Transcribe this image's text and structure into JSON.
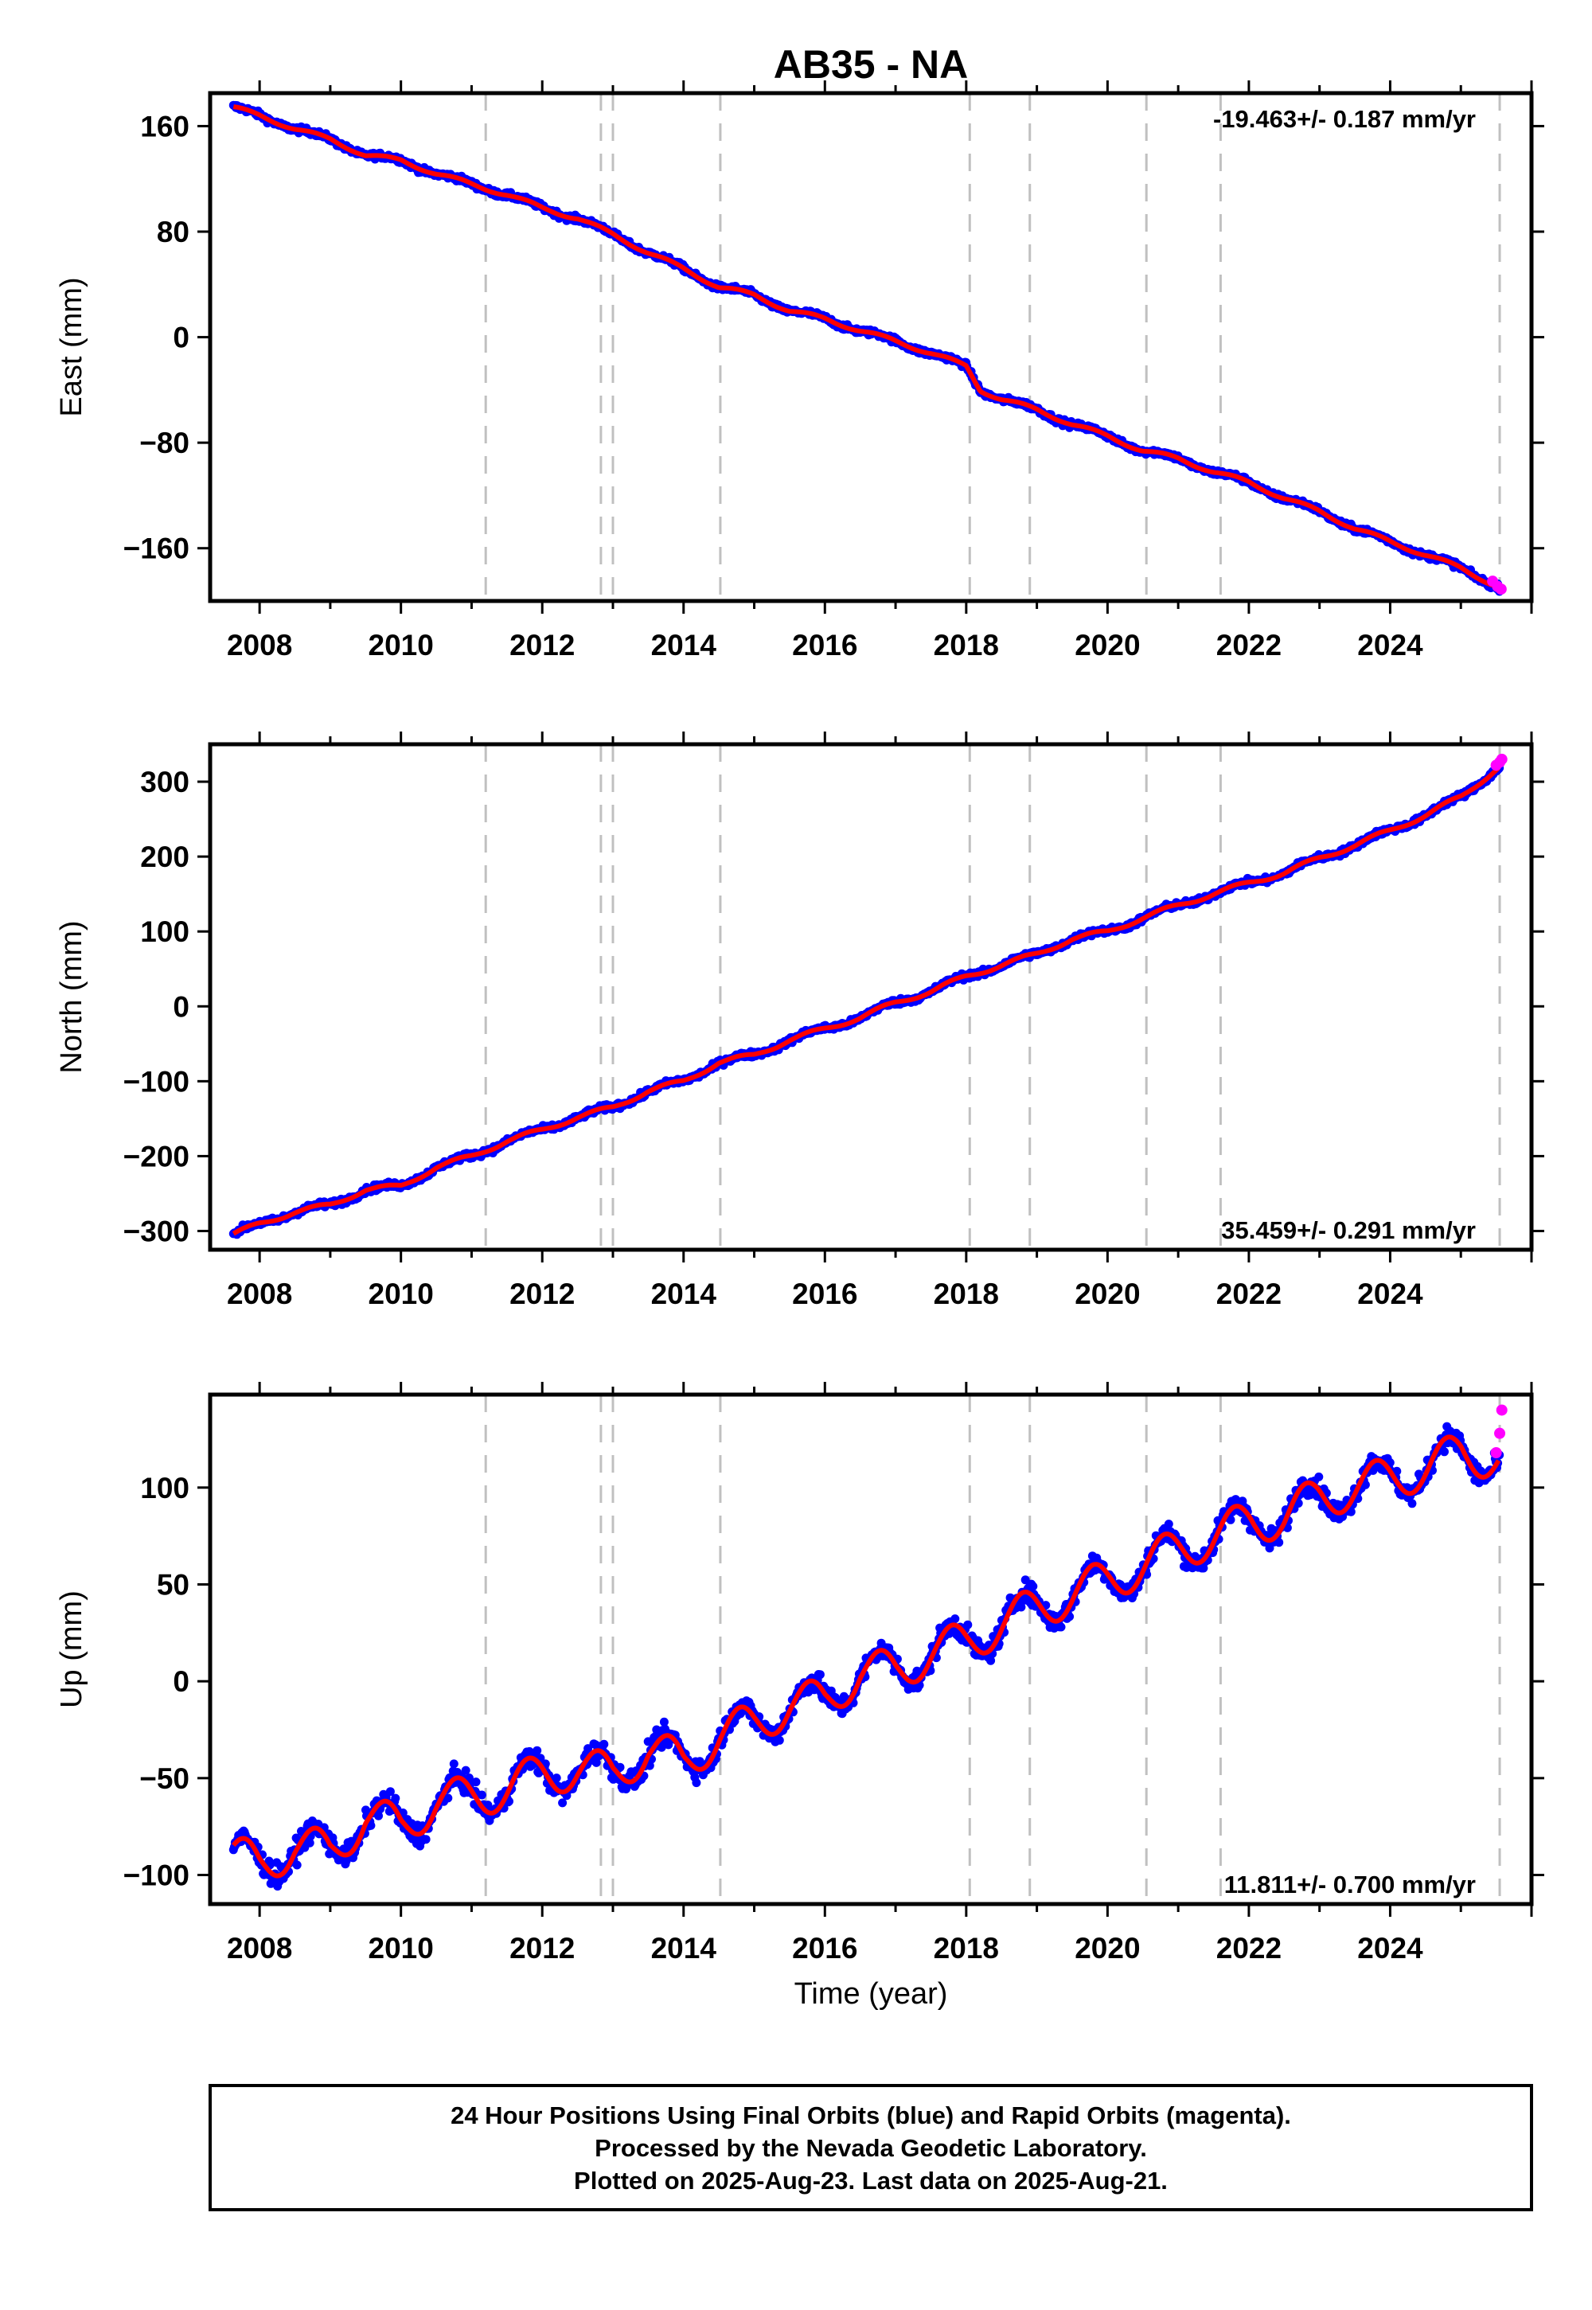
{
  "title": "AB35 - NA",
  "xlabel": "Time (year)",
  "footer": {
    "line1": "24 Hour Positions Using Final Orbits (blue) and Rapid Orbits (magenta).",
    "line2": "Processed by the Nevada Geodetic Laboratory.",
    "line3": "Plotted on 2025-Aug-23. Last data on 2025-Aug-21."
  },
  "colors": {
    "final_orbits": "#0000ff",
    "rapid_orbits": "#ff00ff",
    "model": "#ff0000",
    "event_lines": "#c0c0c0"
  },
  "chart_data": [
    {
      "type": "scatter",
      "component": "East",
      "ylabel": "East (mm)",
      "rate": "-19.463+/- 0.187 mm/yr",
      "xlim": [
        2007.3,
        2026.0
      ],
      "ylim": [
        -200,
        185
      ],
      "xticks": [
        2008,
        2010,
        2012,
        2014,
        2016,
        2018,
        2020,
        2022,
        2024
      ],
      "yticks": [
        -160,
        -80,
        0,
        80,
        160
      ],
      "event_lines": [
        2011.2,
        2012.83,
        2013.0,
        2014.52,
        2018.05,
        2018.9,
        2020.55,
        2021.6,
        2025.55
      ],
      "series": [
        {
          "name": "Final Orbits",
          "values": {
            "x": [
              2007.63,
              2008.0,
              2008.5,
              2009.0,
              2009.5,
              2010.0,
              2010.5,
              2011.0,
              2011.5,
              2012.0,
              2012.5,
              2013.0,
              2013.5,
              2014.0,
              2014.5,
              2015.0,
              2015.5,
              2016.0,
              2016.5,
              2017.0,
              2017.5,
              2018.0,
              2018.2,
              2018.5,
              2019.0,
              2019.5,
              2020.0,
              2020.5,
              2021.0,
              2021.5,
              2022.0,
              2022.5,
              2023.0,
              2023.5,
              2024.0,
              2024.5,
              2025.0,
              2025.55
            ],
            "y": [
              174,
              168,
              158,
              150,
              138,
              134,
              124,
              116,
              108,
              98,
              90,
              78,
              64,
              52,
              38,
              32,
              20,
              14,
              5,
              -3,
              -12,
              -22,
              -40,
              -47,
              -55,
              -66,
              -75,
              -86,
              -92,
              -102,
              -110,
              -122,
              -132,
              -145,
              -155,
              -165,
              -175,
              -190
            ]
          }
        },
        {
          "name": "Rapid Orbits",
          "values": {
            "x": [
              2025.45,
              2025.52,
              2025.57
            ],
            "y": [
              -185,
              -189,
              -191
            ]
          }
        }
      ]
    },
    {
      "type": "scatter",
      "component": "North",
      "ylabel": "North (mm)",
      "rate": "35.459+/- 0.291 mm/yr",
      "xlim": [
        2007.3,
        2026.0
      ],
      "ylim": [
        -325,
        350
      ],
      "xticks": [
        2008,
        2010,
        2012,
        2014,
        2016,
        2018,
        2020,
        2022,
        2024
      ],
      "yticks": [
        -300,
        -200,
        -100,
        0,
        100,
        200,
        300
      ],
      "event_lines": [
        2011.2,
        2012.83,
        2013.0,
        2014.52,
        2018.05,
        2018.9,
        2020.55,
        2021.6,
        2025.55
      ],
      "series": [
        {
          "name": "Final Orbits",
          "values": {
            "x": [
              2007.63,
              2008.0,
              2008.5,
              2009.0,
              2009.5,
              2010.0,
              2010.5,
              2011.0,
              2011.5,
              2012.0,
              2012.5,
              2013.0,
              2013.5,
              2014.0,
              2014.5,
              2015.0,
              2015.5,
              2016.0,
              2016.5,
              2017.0,
              2017.5,
              2018.0,
              2018.5,
              2019.0,
              2019.5,
              2020.0,
              2020.5,
              2021.0,
              2021.5,
              2022.0,
              2022.5,
              2023.0,
              2023.5,
              2024.0,
              2024.5,
              2025.0,
              2025.55
            ],
            "y": [
              -305,
              -290,
              -275,
              -265,
              -245,
              -240,
              -215,
              -200,
              -180,
              -165,
              -148,
              -135,
              -113,
              -100,
              -75,
              -65,
              -45,
              -30,
              -15,
              5,
              20,
              40,
              55,
              70,
              90,
              100,
              118,
              135,
              150,
              165,
              178,
              198,
              215,
              235,
              255,
              280,
              320
            ]
          }
        },
        {
          "name": "Rapid Orbits",
          "values": {
            "x": [
              2025.5,
              2025.55,
              2025.58
            ],
            "y": [
              322,
              326,
              330
            ]
          }
        }
      ]
    },
    {
      "type": "scatter",
      "component": "Up",
      "ylabel": "Up (mm)",
      "rate": "11.811+/- 0.700 mm/yr",
      "xlim": [
        2007.3,
        2026.0
      ],
      "ylim": [
        -115,
        148
      ],
      "xticks": [
        2008,
        2010,
        2012,
        2014,
        2016,
        2018,
        2020,
        2022,
        2024
      ],
      "yticks": [
        -100,
        -50,
        0,
        50,
        100
      ],
      "event_lines": [
        2011.2,
        2012.83,
        2013.0,
        2014.52,
        2018.05,
        2018.9,
        2020.55,
        2021.6,
        2025.55
      ],
      "series": [
        {
          "name": "Final Orbits",
          "values": {
            "x": [
              2007.63,
              2008.0,
              2008.5,
              2009.0,
              2009.5,
              2010.0,
              2010.5,
              2011.0,
              2011.5,
              2012.0,
              2012.5,
              2013.0,
              2013.5,
              2014.0,
              2014.5,
              2015.0,
              2015.5,
              2016.0,
              2016.5,
              2017.0,
              2017.5,
              2018.0,
              2018.5,
              2019.0,
              2019.5,
              2020.0,
              2020.5,
              2021.0,
              2021.5,
              2022.0,
              2022.5,
              2023.0,
              2023.5,
              2024.0,
              2024.5,
              2025.0,
              2025.55
            ],
            "y": [
              -90,
              -95,
              -85,
              -88,
              -70,
              -75,
              -62,
              -60,
              -55,
              -48,
              -45,
              -48,
              -35,
              -42,
              -28,
              -22,
              -12,
              -10,
              5,
              5,
              15,
              20,
              30,
              38,
              45,
              52,
              60,
              68,
              75,
              82,
              85,
              95,
              100,
              105,
              110,
              118,
              115
            ]
          }
        },
        {
          "name": "Rapid Orbits",
          "values": {
            "x": [
              2025.5,
              2025.55,
              2025.58
            ],
            "y": [
              118,
              128,
              140
            ]
          }
        }
      ]
    }
  ]
}
